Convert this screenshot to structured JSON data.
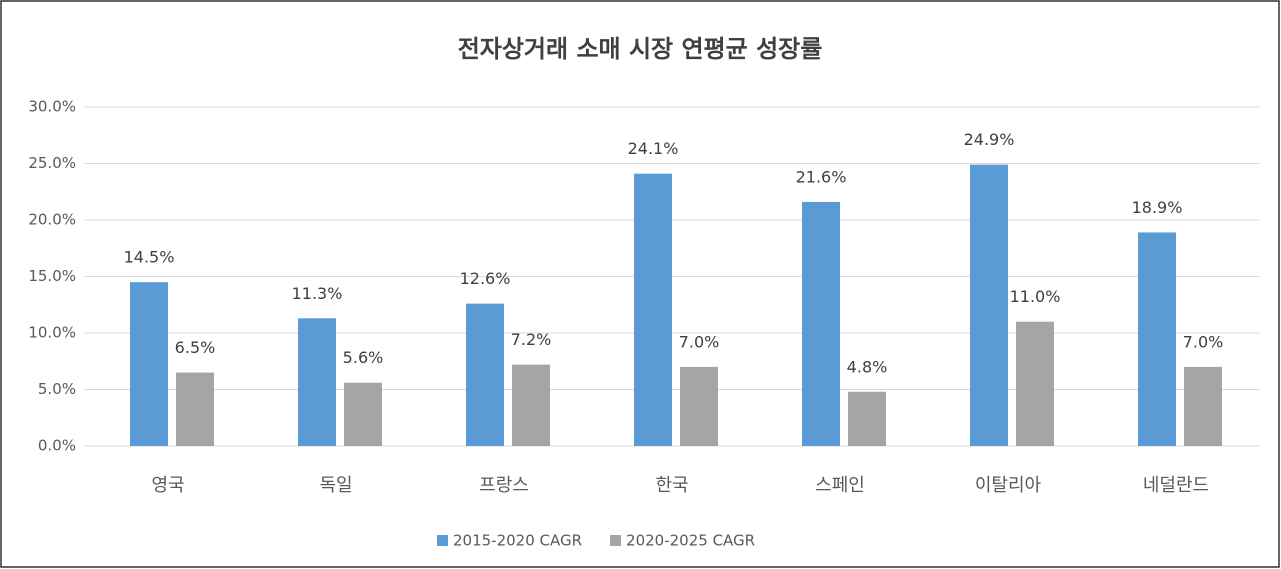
{
  "chart_data": {
    "type": "bar",
    "title": "전자상거래 소매 시장 연평균 성장률",
    "categories": [
      "영국",
      "독일",
      "프랑스",
      "한국",
      "스페인",
      "이탈리아",
      "네덜란드"
    ],
    "series": [
      {
        "name": "2015-2020 CAGR",
        "color": "#5b9bd5",
        "values": [
          14.5,
          11.3,
          12.6,
          24.1,
          21.6,
          24.9,
          18.9
        ],
        "value_labels": [
          "14.5%",
          "11.3%",
          "12.6%",
          "24.1%",
          "21.6%",
          "24.9%",
          "18.9%"
        ]
      },
      {
        "name": "2020-2025 CAGR",
        "color": "#a5a5a5",
        "values": [
          6.5,
          5.6,
          7.2,
          7.0,
          4.8,
          11.0,
          7.0
        ],
        "value_labels": [
          "6.5%",
          "5.6%",
          "7.2%",
          "7.0%",
          "4.8%",
          "11.0%",
          "7.0%"
        ]
      }
    ],
    "ylim": [
      0,
      30
    ],
    "yticks": [
      {
        "value": 0,
        "label": "0.0%"
      },
      {
        "value": 5,
        "label": "5.0%"
      },
      {
        "value": 10,
        "label": "10.0%"
      },
      {
        "value": 15,
        "label": "15.0%"
      },
      {
        "value": 20,
        "label": "20.0%"
      },
      {
        "value": 25,
        "label": "25.0%"
      },
      {
        "value": 30,
        "label": "30.0%"
      }
    ],
    "grid": true,
    "legend": "bottom"
  }
}
